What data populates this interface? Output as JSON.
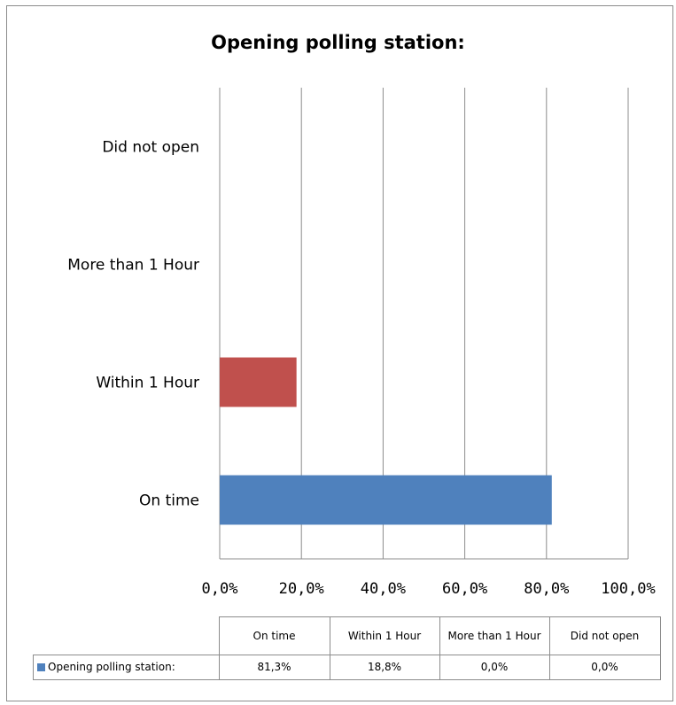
{
  "chart_data": {
    "type": "bar",
    "orientation": "horizontal",
    "title": "Opening polling station:",
    "categories": [
      "On time",
      "Within 1 Hour",
      "More than 1 Hour",
      "Did not open"
    ],
    "series": [
      {
        "name": "Opening polling station:",
        "values": [
          81.3,
          18.8,
          0.0,
          0.0
        ],
        "value_labels": [
          "81,3%",
          "18,8%",
          "0,0%",
          "0,0%"
        ]
      }
    ],
    "bar_colors": [
      "#4f81bd",
      "#c0504d",
      "#4f81bd",
      "#4f81bd"
    ],
    "xlim": [
      0,
      100
    ],
    "x_ticks": [
      0,
      20,
      40,
      60,
      80,
      100
    ],
    "x_tick_labels": [
      "0,0%",
      "20,0%",
      "40,0%",
      "60,0%",
      "80,0%",
      "100,0%"
    ],
    "grid": "vertical",
    "data_table": true
  },
  "table": {
    "headers": [
      "On time",
      "Within 1 Hour",
      "More than 1 Hour",
      "Did not open"
    ],
    "row_label": "Opening polling station:",
    "legend_color": "#4f81bd"
  }
}
